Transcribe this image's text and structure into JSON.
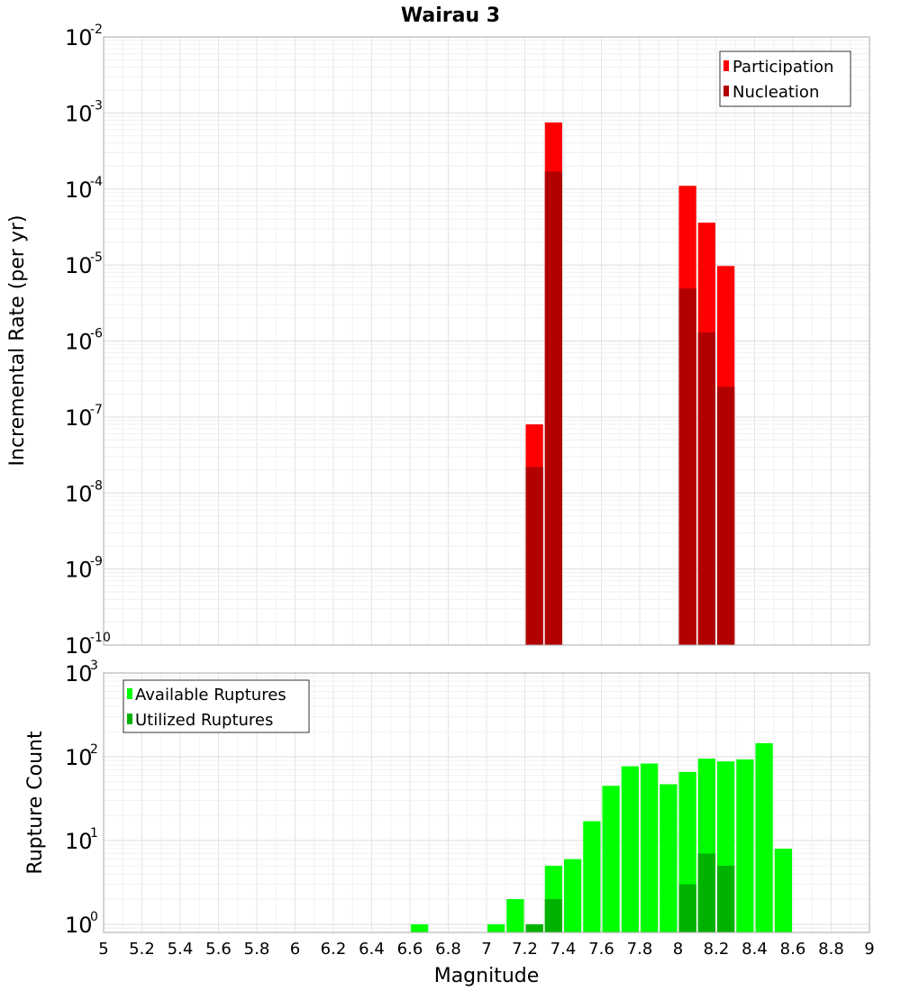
{
  "chart_data": [
    {
      "type": "bar",
      "title": "Wairau 3",
      "ylabel": "Incremental Rate (per yr)",
      "yscale": "log",
      "ylim": [
        1e-10,
        0.01
      ],
      "xlim": [
        5,
        9
      ],
      "bin_width": 0.1,
      "legend_position": "top-right",
      "y_ticks": [
        {
          "base": "10",
          "exp": "-2"
        },
        {
          "base": "10",
          "exp": "-3"
        },
        {
          "base": "10",
          "exp": "-4"
        },
        {
          "base": "10",
          "exp": "-5"
        },
        {
          "base": "10",
          "exp": "-6"
        },
        {
          "base": "10",
          "exp": "-7"
        },
        {
          "base": "10",
          "exp": "-8"
        },
        {
          "base": "10",
          "exp": "-9"
        },
        {
          "base": "10",
          "exp": "-10"
        }
      ],
      "series": [
        {
          "name": "Participation",
          "color": "#ff0000",
          "x": [
            7.25,
            7.35,
            8.05,
            8.15,
            8.25
          ],
          "values": [
            8e-08,
            0.00075,
            0.00011,
            3.6e-05,
            9.7e-06
          ]
        },
        {
          "name": "Nucleation",
          "color": "#b20000",
          "x": [
            7.25,
            7.35,
            8.05,
            8.15,
            8.25
          ],
          "values": [
            2.2e-08,
            0.00017,
            4.9e-06,
            1.3e-06,
            2.5e-07
          ]
        }
      ]
    },
    {
      "type": "bar",
      "xlabel": "Magnitude",
      "ylabel": "Rupture Count",
      "yscale": "log",
      "ylim": [
        0.8,
        1000
      ],
      "xlim": [
        5,
        9
      ],
      "bin_width": 0.1,
      "legend_position": "top-left",
      "y_ticks": [
        {
          "base": "10",
          "exp": "3",
          "value": 1000
        },
        {
          "base": "10",
          "exp": "2",
          "value": 100
        },
        {
          "base": "10",
          "exp": "1",
          "value": 10
        },
        {
          "base": "10",
          "exp": "0",
          "value": 1
        }
      ],
      "x_tick_labels": [
        "5",
        "5.2",
        "5.4",
        "5.6",
        "5.8",
        "6",
        "6.2",
        "6.4",
        "6.6",
        "6.8",
        "7",
        "7.2",
        "7.4",
        "7.6",
        "7.8",
        "8",
        "8.2",
        "8.4",
        "8.6",
        "8.8",
        "9"
      ],
      "series": [
        {
          "name": "Available Ruptures",
          "color": "#00ff00",
          "x": [
            6.65,
            7.05,
            7.15,
            7.25,
            7.35,
            7.45,
            7.55,
            7.65,
            7.75,
            7.85,
            7.95,
            8.05,
            8.15,
            8.25,
            8.35,
            8.45,
            8.55
          ],
          "values": [
            1,
            1,
            2,
            1,
            5,
            6,
            17,
            45,
            77,
            83,
            47,
            66,
            95,
            88,
            93,
            145,
            8
          ]
        },
        {
          "name": "Utilized Ruptures",
          "color": "#00b200",
          "x": [
            7.25,
            7.35,
            8.05,
            8.15,
            8.25
          ],
          "values": [
            1,
            2,
            3,
            7,
            5
          ]
        }
      ]
    }
  ]
}
